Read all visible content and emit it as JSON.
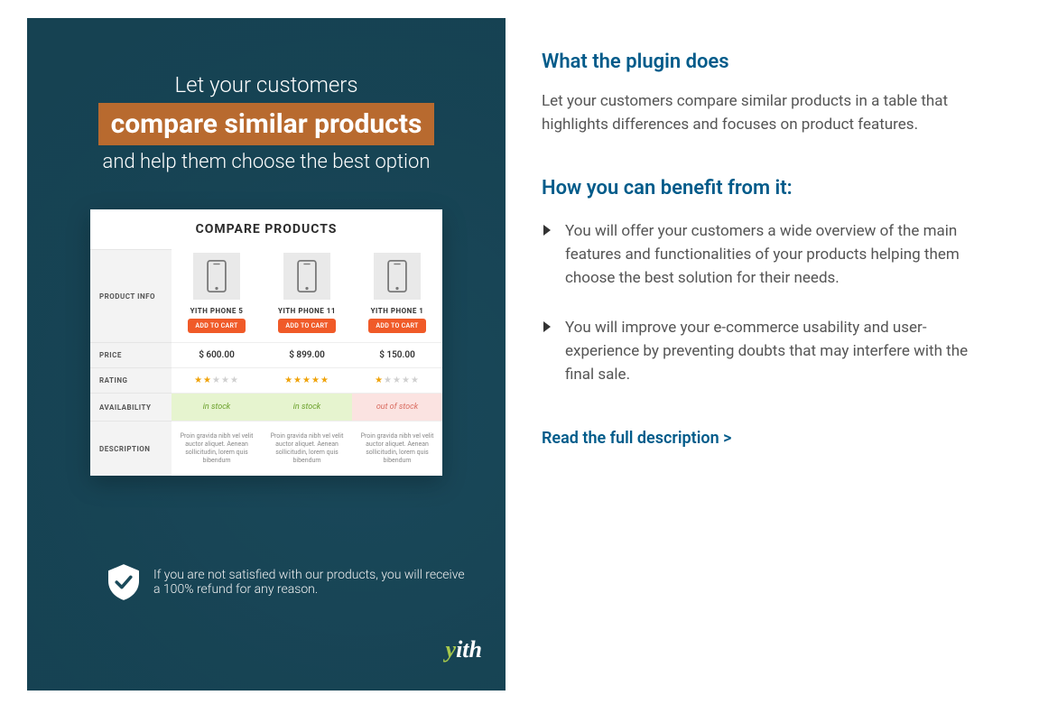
{
  "colors": {
    "heading": "#005b8a",
    "body_text": "#555555",
    "promo_overlay": "rgba(22,68,85,0.82)",
    "highlight_bg": "#b86a2f",
    "addcart_bg": "#f05a28",
    "star_on": "#f0a30a",
    "star_off": "#d0d0d0",
    "instock_bg": "#e6f4cf",
    "instock_text": "#6aa02a",
    "outstock_bg": "#fbe3e1",
    "outstock_text": "#d96b5f",
    "brand_accent": "#a6c84c"
  },
  "promo": {
    "line1": "Let your customers",
    "highlight": "compare similar products",
    "line3": "and help them choose the best option",
    "guarantee": "If you are not satisfied with our products, you will receive a 100% refund for any reason.",
    "brand_y": "y",
    "brand_ith": "ith"
  },
  "ctable": {
    "title": "COMPARE PRODUCTS",
    "row_labels": {
      "info": "PRODUCT INFO",
      "price": "PRICE",
      "rating": "RATING",
      "availability": "AVAILABILITY",
      "description": "DESCRIPTION"
    },
    "addcart_label": "ADD TO CART",
    "desc_lorem": "Proin gravida nibh vel velit auctor aliquet. Aenean sollicitudin, lorem quis bibendum",
    "products": [
      {
        "name": "YITH PHONE 5",
        "price": "$ 600.00",
        "rating": 2,
        "stock": "in stock",
        "in_stock": true
      },
      {
        "name": "YITH PHONE 11",
        "price": "$ 899.00",
        "rating": 5,
        "stock": "in stock",
        "in_stock": true
      },
      {
        "name": "YITH PHONE 1",
        "price": "$ 150.00",
        "rating": 1,
        "stock": "out of stock",
        "in_stock": false
      }
    ]
  },
  "content": {
    "h_what": "What the plugin does",
    "p_what": "Let your customers compare similar products in a table that highlights differences and focuses on product features.",
    "h_benefit": "How you can benefit from it:",
    "benefits": [
      "You will offer your customers a wide overview of the main features and functionalities of your products helping them choose the best solution for their needs.",
      "You will improve your e-commerce usability and user-experience by preventing doubts that may interfere with the final sale."
    ],
    "readmore": "Read the full description >"
  }
}
